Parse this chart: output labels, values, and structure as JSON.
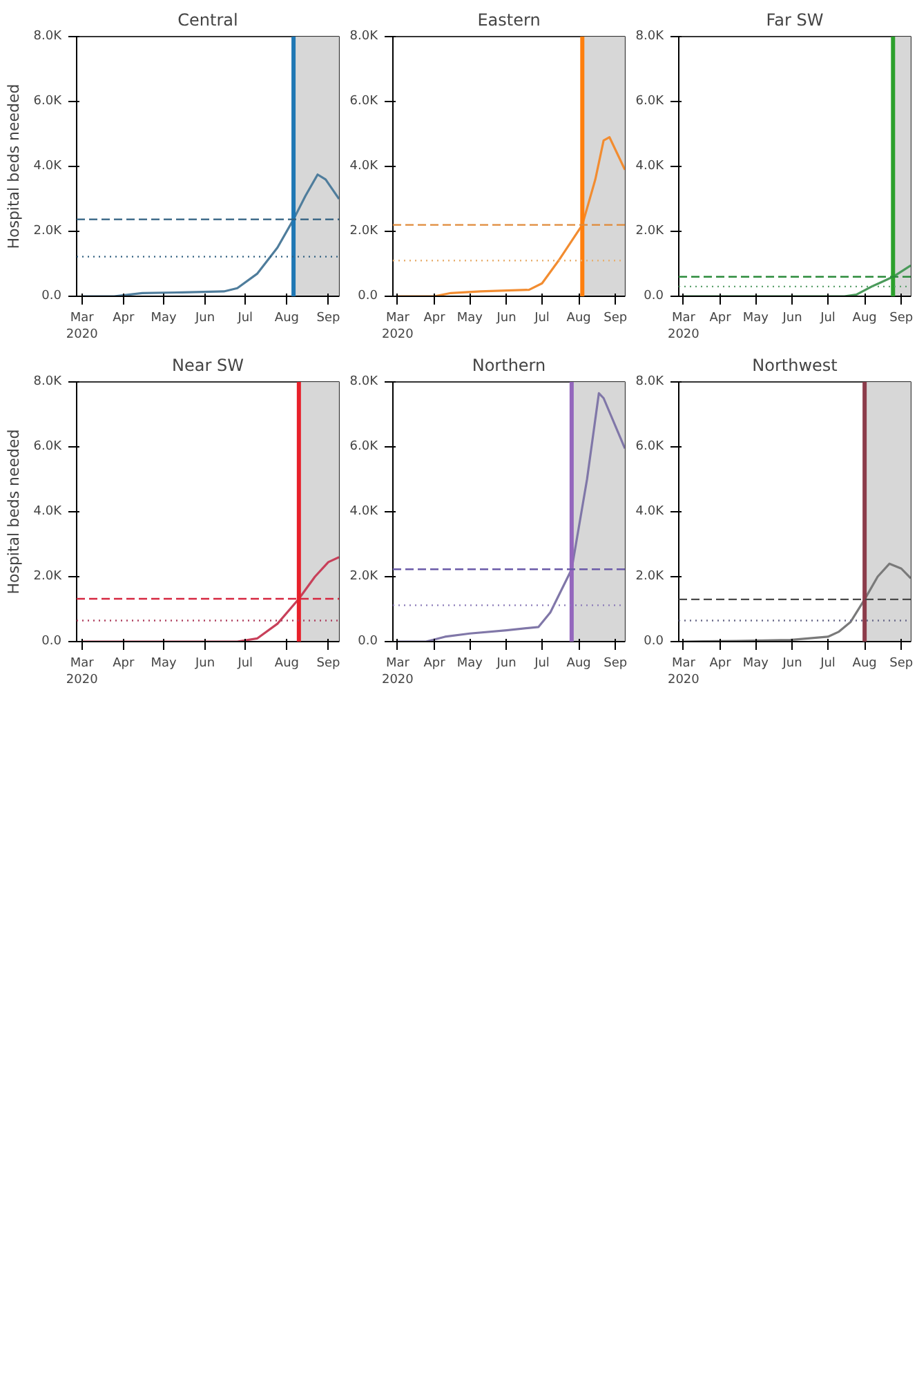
{
  "chart_data": [
    {
      "type": "line",
      "title": "Central",
      "ylabel": "Hospital beds needed",
      "x": [
        "2020-03-01",
        "2020-03-25",
        "2020-04-05",
        "2020-04-15",
        "2020-05-15",
        "2020-06-15",
        "2020-06-25",
        "2020-07-10",
        "2020-07-25",
        "2020-08-06",
        "2020-08-15",
        "2020-08-24",
        "2020-08-30",
        "2020-09-09"
      ],
      "series": [
        {
          "color": "#4f7d9c",
          "values": [
            0,
            0,
            50,
            100,
            120,
            150,
            250,
            700,
            1500,
            2370,
            3100,
            3750,
            3600,
            3000
          ]
        }
      ],
      "xlim": [
        "2020-02-26",
        "2020-09-09"
      ],
      "ylim": [
        0,
        8000
      ],
      "xticks": [
        {
          "value": "2020-03-01",
          "label": "Mar\n2020"
        },
        {
          "value": "2020-04-01",
          "label": "Apr"
        },
        {
          "value": "2020-05-01",
          "label": "May"
        },
        {
          "value": "2020-06-01",
          "label": "Jun"
        },
        {
          "value": "2020-07-01",
          "label": "Jul"
        },
        {
          "value": "2020-08-01",
          "label": "Aug"
        },
        {
          "value": "2020-09-01",
          "label": "Sep"
        }
      ],
      "yticks": [
        {
          "value": 0,
          "label": "0.0"
        },
        {
          "value": 2000,
          "label": "2.0K"
        },
        {
          "value": 4000,
          "label": "4.0K"
        },
        {
          "value": 6000,
          "label": "6.0K"
        },
        {
          "value": 8000,
          "label": "8.0K"
        }
      ],
      "ref_lines": [
        {
          "axis": "x",
          "value": "2020-08-06",
          "color": "#1f77b4",
          "line_style": "solid"
        },
        {
          "axis": "y",
          "value": 2370,
          "color": "#2f5f80",
          "line_style": "dashed"
        },
        {
          "axis": "y",
          "value": 1220,
          "color": "#2f5f80",
          "line_style": "dotted"
        }
      ],
      "bands": [
        {
          "axis": "x",
          "from": "2020-08-06",
          "to": "2020-09-09",
          "color": "#d3d3d3"
        }
      ]
    },
    {
      "type": "line",
      "title": "Eastern",
      "x": [
        "2020-03-01",
        "2020-04-01",
        "2020-04-15",
        "2020-05-10",
        "2020-06-20",
        "2020-07-01",
        "2020-07-15",
        "2020-08-04",
        "2020-08-15",
        "2020-08-22",
        "2020-08-27",
        "2020-09-09"
      ],
      "series": [
        {
          "color": "#f28c30",
          "values": [
            0,
            0,
            100,
            150,
            200,
            400,
            1100,
            2200,
            3600,
            4800,
            4900,
            3900
          ]
        }
      ],
      "xlim": [
        "2020-02-26",
        "2020-09-09"
      ],
      "ylim": [
        0,
        8000
      ],
      "xticks": [
        {
          "value": "2020-03-01",
          "label": "Mar\n2020"
        },
        {
          "value": "2020-04-01",
          "label": "Apr"
        },
        {
          "value": "2020-05-01",
          "label": "May"
        },
        {
          "value": "2020-06-01",
          "label": "Jun"
        },
        {
          "value": "2020-07-01",
          "label": "Jul"
        },
        {
          "value": "2020-08-01",
          "label": "Aug"
        },
        {
          "value": "2020-09-01",
          "label": "Sep"
        }
      ],
      "yticks": [
        {
          "value": 0,
          "label": "0.0"
        },
        {
          "value": 2000,
          "label": "2.0K"
        },
        {
          "value": 4000,
          "label": "4.0K"
        },
        {
          "value": 6000,
          "label": "6.0K"
        },
        {
          "value": 8000,
          "label": "8.0K"
        }
      ],
      "ref_lines": [
        {
          "axis": "x",
          "value": "2020-08-04",
          "color": "#ff7f0e",
          "line_style": "solid"
        },
        {
          "axis": "y",
          "value": 2200,
          "color": "#e08a3a",
          "line_style": "dashed"
        },
        {
          "axis": "y",
          "value": 1100,
          "color": "#e8b070",
          "line_style": "dotted"
        }
      ],
      "bands": [
        {
          "axis": "x",
          "from": "2020-08-04",
          "to": "2020-09-09",
          "color": "#d3d3d3"
        }
      ]
    },
    {
      "type": "line",
      "title": "Far SW",
      "x": [
        "2020-03-01",
        "2020-07-15",
        "2020-07-25",
        "2020-08-07",
        "2020-08-25",
        "2020-09-09"
      ],
      "series": [
        {
          "color": "#4a9a5a",
          "values": [
            0,
            0,
            50,
            300,
            600,
            950
          ]
        }
      ],
      "xlim": [
        "2020-02-26",
        "2020-09-09"
      ],
      "ylim": [
        0,
        8000
      ],
      "xticks": [
        {
          "value": "2020-03-01",
          "label": "Mar\n2020"
        },
        {
          "value": "2020-04-01",
          "label": "Apr"
        },
        {
          "value": "2020-05-01",
          "label": "May"
        },
        {
          "value": "2020-06-01",
          "label": "Jun"
        },
        {
          "value": "2020-07-01",
          "label": "Jul"
        },
        {
          "value": "2020-08-01",
          "label": "Aug"
        },
        {
          "value": "2020-09-01",
          "label": "Sep"
        }
      ],
      "yticks": [
        {
          "value": 0,
          "label": "0.0"
        },
        {
          "value": 2000,
          "label": "2.0K"
        },
        {
          "value": 4000,
          "label": "4.0K"
        },
        {
          "value": 6000,
          "label": "6.0K"
        },
        {
          "value": 8000,
          "label": "8.0K"
        }
      ],
      "ref_lines": [
        {
          "axis": "x",
          "value": "2020-08-25",
          "color": "#2ca02c",
          "line_style": "solid"
        },
        {
          "axis": "y",
          "value": 600,
          "color": "#2a8a3a",
          "line_style": "dashed"
        },
        {
          "axis": "y",
          "value": 300,
          "color": "#5aa06a",
          "line_style": "dotted"
        }
      ],
      "bands": [
        {
          "axis": "x",
          "from": "2020-08-25",
          "to": "2020-09-09",
          "color": "#d3d3d3"
        }
      ]
    },
    {
      "type": "line",
      "title": "Near SW",
      "ylabel": "Hospital beds needed",
      "x": [
        "2020-03-01",
        "2020-06-25",
        "2020-07-10",
        "2020-07-25",
        "2020-08-10",
        "2020-08-22",
        "2020-09-01",
        "2020-09-09"
      ],
      "series": [
        {
          "color": "#c8405a",
          "values": [
            0,
            0,
            100,
            550,
            1320,
            2000,
            2450,
            2600
          ]
        }
      ],
      "xlim": [
        "2020-02-26",
        "2020-09-09"
      ],
      "ylim": [
        0,
        8000
      ],
      "xticks": [
        {
          "value": "2020-03-01",
          "label": "Mar\n2020"
        },
        {
          "value": "2020-04-01",
          "label": "Apr"
        },
        {
          "value": "2020-05-01",
          "label": "May"
        },
        {
          "value": "2020-06-01",
          "label": "Jun"
        },
        {
          "value": "2020-07-01",
          "label": "Jul"
        },
        {
          "value": "2020-08-01",
          "label": "Aug"
        },
        {
          "value": "2020-09-01",
          "label": "Sep"
        }
      ],
      "yticks": [
        {
          "value": 0,
          "label": "0.0"
        },
        {
          "value": 2000,
          "label": "2.0K"
        },
        {
          "value": 4000,
          "label": "4.0K"
        },
        {
          "value": 6000,
          "label": "6.0K"
        },
        {
          "value": 8000,
          "label": "8.0K"
        }
      ],
      "ref_lines": [
        {
          "axis": "x",
          "value": "2020-08-10",
          "color": "#e8202a",
          "line_style": "solid"
        },
        {
          "axis": "y",
          "value": 1320,
          "color": "#d62740",
          "line_style": "dashed"
        },
        {
          "axis": "y",
          "value": 650,
          "color": "#b04060",
          "line_style": "dotted"
        }
      ],
      "bands": [
        {
          "axis": "x",
          "from": "2020-08-10",
          "to": "2020-09-09",
          "color": "#d3d3d3"
        }
      ]
    },
    {
      "type": "line",
      "title": "Northern",
      "x": [
        "2020-03-01",
        "2020-03-25",
        "2020-04-10",
        "2020-05-01",
        "2020-06-01",
        "2020-06-28",
        "2020-07-08",
        "2020-07-26",
        "2020-08-08",
        "2020-08-18",
        "2020-08-22",
        "2020-09-09"
      ],
      "series": [
        {
          "color": "#8077a8",
          "values": [
            0,
            0,
            150,
            250,
            350,
            450,
            900,
            2230,
            5000,
            7650,
            7500,
            5950
          ]
        }
      ],
      "xlim": [
        "2020-02-26",
        "2020-09-09"
      ],
      "ylim": [
        0,
        8000
      ],
      "xticks": [
        {
          "value": "2020-03-01",
          "label": "Mar\n2020"
        },
        {
          "value": "2020-04-01",
          "label": "Apr"
        },
        {
          "value": "2020-05-01",
          "label": "May"
        },
        {
          "value": "2020-06-01",
          "label": "Jun"
        },
        {
          "value": "2020-07-01",
          "label": "Jul"
        },
        {
          "value": "2020-08-01",
          "label": "Aug"
        },
        {
          "value": "2020-09-01",
          "label": "Sep"
        }
      ],
      "yticks": [
        {
          "value": 0,
          "label": "0.0"
        },
        {
          "value": 2000,
          "label": "2.0K"
        },
        {
          "value": 4000,
          "label": "4.0K"
        },
        {
          "value": 6000,
          "label": "6.0K"
        },
        {
          "value": 8000,
          "label": "8.0K"
        }
      ],
      "ref_lines": [
        {
          "axis": "x",
          "value": "2020-07-26",
          "color": "#9467bd",
          "line_style": "solid"
        },
        {
          "axis": "y",
          "value": 2230,
          "color": "#6a5aa8",
          "line_style": "dashed"
        },
        {
          "axis": "y",
          "value": 1120,
          "color": "#8a7ab8",
          "line_style": "dotted"
        }
      ],
      "bands": [
        {
          "axis": "x",
          "from": "2020-07-26",
          "to": "2020-09-09",
          "color": "#d3d3d3"
        }
      ]
    },
    {
      "type": "line",
      "title": "Northwest",
      "x": [
        "2020-03-01",
        "2020-04-15",
        "2020-05-30",
        "2020-07-01",
        "2020-07-10",
        "2020-07-20",
        "2020-08-01",
        "2020-08-12",
        "2020-08-22",
        "2020-09-01",
        "2020-09-09"
      ],
      "series": [
        {
          "color": "#7a7a7a",
          "values": [
            0,
            20,
            50,
            150,
            300,
            600,
            1300,
            2000,
            2400,
            2250,
            1950
          ]
        }
      ],
      "xlim": [
        "2020-02-26",
        "2020-09-09"
      ],
      "ylim": [
        0,
        8000
      ],
      "xticks": [
        {
          "value": "2020-03-01",
          "label": "Mar\n2020"
        },
        {
          "value": "2020-04-01",
          "label": "Apr"
        },
        {
          "value": "2020-05-01",
          "label": "May"
        },
        {
          "value": "2020-06-01",
          "label": "Jun"
        },
        {
          "value": "2020-07-01",
          "label": "Jul"
        },
        {
          "value": "2020-08-01",
          "label": "Aug"
        },
        {
          "value": "2020-09-01",
          "label": "Sep"
        }
      ],
      "yticks": [
        {
          "value": 0,
          "label": "0.0"
        },
        {
          "value": 2000,
          "label": "2.0K"
        },
        {
          "value": 4000,
          "label": "4.0K"
        },
        {
          "value": 6000,
          "label": "6.0K"
        },
        {
          "value": 8000,
          "label": "8.0K"
        }
      ],
      "ref_lines": [
        {
          "axis": "x",
          "value": "2020-08-01",
          "color": "#8c3c4b",
          "line_style": "solid"
        },
        {
          "axis": "y",
          "value": 1300,
          "color": "#4a4a4a",
          "line_style": "dashed"
        },
        {
          "axis": "y",
          "value": 650,
          "color": "#6a6a8a",
          "line_style": "dotted"
        }
      ],
      "bands": [
        {
          "axis": "x",
          "from": "2020-08-01",
          "to": "2020-09-09",
          "color": "#d3d3d3"
        }
      ]
    }
  ]
}
